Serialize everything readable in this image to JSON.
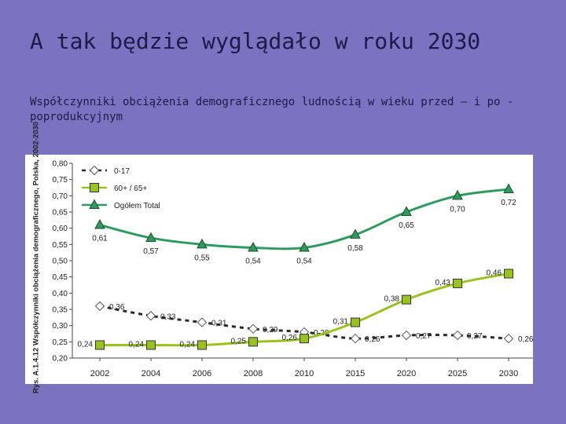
{
  "slide": {
    "title": "A tak będzie wyglądało w roku 2030",
    "subtitle": "Współczynniki obciążenia demograficznego ludnością w wieku przed – i po - poprodukcyjnym"
  },
  "chart_data": {
    "type": "line",
    "title": "",
    "ylabel": "Rys. A.1.4.12 Współczynniki obciążenia demograficznego, Polska, 2002-2030",
    "xlabel": "",
    "categories": [
      "2002",
      "2004",
      "2006",
      "2008",
      "2010",
      "2015",
      "2020",
      "2025",
      "2030"
    ],
    "ylim": [
      0.2,
      0.8
    ],
    "yticks": [
      "0,20",
      "0,25",
      "0,30",
      "0,35",
      "0,40",
      "0,45",
      "0,50",
      "0,55",
      "0,60",
      "0,65",
      "0,70",
      "0,75",
      "0,80"
    ],
    "legend_position": "top-left",
    "grid": false,
    "series": [
      {
        "name": "0-17",
        "marker": "diamond",
        "dashed": true,
        "color": "#2a2a2a",
        "values": [
          0.36,
          0.33,
          0.31,
          0.29,
          0.28,
          0.26,
          0.27,
          0.27,
          0.26
        ],
        "labels": [
          "0,36",
          "0,33",
          "0,31",
          "0,29",
          "0,28",
          "0,26",
          "0,27",
          "0,27",
          "0,26"
        ]
      },
      {
        "name": "60+ / 65+",
        "marker": "square",
        "dashed": false,
        "color": "#99c21e",
        "values": [
          0.24,
          0.24,
          0.24,
          0.25,
          0.26,
          0.31,
          0.38,
          0.43,
          0.46
        ],
        "labels": [
          "0,24",
          "0,24",
          "0,24",
          "0,25",
          "0,26",
          "0,31",
          "0,38",
          "0,43",
          "0,46"
        ]
      },
      {
        "name": "Ogółem Total",
        "marker": "triangle",
        "dashed": false,
        "color": "#2e9a5e",
        "values": [
          0.61,
          0.57,
          0.55,
          0.54,
          0.54,
          0.58,
          0.65,
          0.7,
          0.72
        ],
        "labels": [
          "0,61",
          "0,57",
          "0,55",
          "0,54",
          "0,54",
          "0,58",
          "0,65",
          "0,70",
          "0,72"
        ]
      }
    ]
  }
}
